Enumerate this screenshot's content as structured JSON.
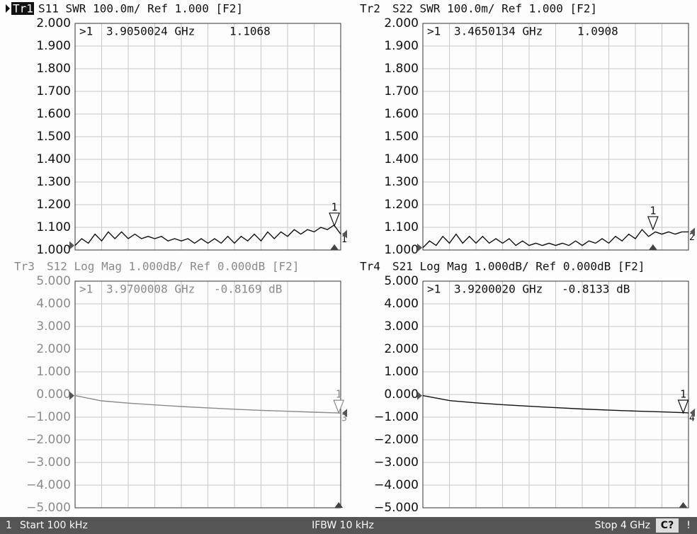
{
  "chart_data": [
    {
      "type": "line",
      "trace": "Tr1",
      "title": "S11 SWR 100.0m/ Ref 1.000 [F2]",
      "active": true,
      "color": "#111111",
      "end_label": "1",
      "xlim": [
        0.0001,
        4
      ],
      "x": [
        0.0001,
        0.1,
        0.2,
        0.3,
        0.4,
        0.5,
        0.6,
        0.7,
        0.8,
        0.9,
        1.0,
        1.1,
        1.2,
        1.3,
        1.4,
        1.5,
        1.6,
        1.7,
        1.8,
        1.9,
        2.0,
        2.1,
        2.2,
        2.3,
        2.4,
        2.5,
        2.6,
        2.7,
        2.8,
        2.9,
        3.0,
        3.1,
        3.2,
        3.3,
        3.4,
        3.5,
        3.6,
        3.7,
        3.8,
        3.9,
        4.0
      ],
      "values": [
        1.02,
        1.05,
        1.03,
        1.07,
        1.04,
        1.08,
        1.05,
        1.08,
        1.05,
        1.07,
        1.05,
        1.06,
        1.05,
        1.06,
        1.04,
        1.05,
        1.04,
        1.05,
        1.03,
        1.05,
        1.03,
        1.05,
        1.03,
        1.06,
        1.03,
        1.06,
        1.04,
        1.07,
        1.04,
        1.08,
        1.05,
        1.08,
        1.06,
        1.09,
        1.07,
        1.09,
        1.08,
        1.1,
        1.09,
        1.11,
        1.07
      ],
      "ylim": [
        1,
        2
      ],
      "yticks": [
        {
          "value": 2,
          "label": "2.000"
        },
        {
          "value": 1.9,
          "label": "1.900"
        },
        {
          "value": 1.8,
          "label": "1.800"
        },
        {
          "value": 1.7,
          "label": "1.700"
        },
        {
          "value": 1.6,
          "label": "1.600"
        },
        {
          "value": 1.5,
          "label": "1.500"
        },
        {
          "value": 1.4,
          "label": "1.400"
        },
        {
          "value": 1.3,
          "label": "1.300"
        },
        {
          "value": 1.2,
          "label": "1.200"
        },
        {
          "value": 1.1,
          "label": "1.100"
        },
        {
          "value": 1,
          "label": "1.000"
        }
      ],
      "grid": true,
      "marker": {
        "name": ">1",
        "label": "1",
        "x": 3.9050024,
        "x_label": "3.9050024 GHz",
        "value": 1.1068,
        "value_label": "1.1068"
      }
    },
    {
      "type": "line",
      "trace": "Tr2",
      "title": "S22 SWR 100.0m/ Ref 1.000 [F2]",
      "active": false,
      "color": "#111111",
      "end_label": "2",
      "xlim": [
        0.0001,
        4
      ],
      "x": [
        0.0001,
        0.1,
        0.2,
        0.3,
        0.4,
        0.5,
        0.6,
        0.7,
        0.8,
        0.9,
        1.0,
        1.1,
        1.2,
        1.3,
        1.4,
        1.5,
        1.6,
        1.7,
        1.8,
        1.9,
        2.0,
        2.1,
        2.2,
        2.3,
        2.4,
        2.5,
        2.6,
        2.7,
        2.8,
        2.9,
        3.0,
        3.1,
        3.2,
        3.3,
        3.4,
        3.5,
        3.6,
        3.7,
        3.8,
        3.9,
        4.0
      ],
      "values": [
        1.01,
        1.04,
        1.02,
        1.06,
        1.03,
        1.07,
        1.03,
        1.06,
        1.03,
        1.06,
        1.03,
        1.05,
        1.03,
        1.05,
        1.02,
        1.04,
        1.02,
        1.03,
        1.02,
        1.03,
        1.02,
        1.03,
        1.02,
        1.04,
        1.02,
        1.04,
        1.03,
        1.05,
        1.03,
        1.06,
        1.04,
        1.07,
        1.05,
        1.09,
        1.06,
        1.08,
        1.07,
        1.08,
        1.07,
        1.08,
        1.08
      ],
      "ylim": [
        1,
        2
      ],
      "yticks": [
        {
          "value": 2,
          "label": "2.000"
        },
        {
          "value": 1.9,
          "label": "1.900"
        },
        {
          "value": 1.8,
          "label": "1.800"
        },
        {
          "value": 1.7,
          "label": "1.700"
        },
        {
          "value": 1.6,
          "label": "1.600"
        },
        {
          "value": 1.5,
          "label": "1.500"
        },
        {
          "value": 1.4,
          "label": "1.400"
        },
        {
          "value": 1.3,
          "label": "1.300"
        },
        {
          "value": 1.2,
          "label": "1.200"
        },
        {
          "value": 1.1,
          "label": "1.100"
        },
        {
          "value": 1,
          "label": "1.000"
        }
      ],
      "grid": true,
      "marker": {
        "name": ">1",
        "label": "1",
        "x": 3.4650134,
        "x_label": "3.4650134 GHz",
        "value": 1.0908,
        "value_label": "1.0908"
      }
    },
    {
      "type": "line",
      "trace": "Tr3",
      "title": "S12 Log Mag 1.000dB/ Ref 0.000dB [F2]",
      "active": false,
      "color": "#8a8a8a",
      "end_label": "3",
      "xlim": [
        0.0001,
        4
      ],
      "x": [
        0.0001,
        0.4,
        0.8,
        1.2,
        1.6,
        2.0,
        2.4,
        2.8,
        3.2,
        3.6,
        4.0
      ],
      "values": [
        -0.05,
        -0.28,
        -0.38,
        -0.46,
        -0.53,
        -0.59,
        -0.65,
        -0.7,
        -0.74,
        -0.78,
        -0.82
      ],
      "ylim": [
        -5,
        5
      ],
      "yticks": [
        {
          "value": 5,
          "label": "5.000"
        },
        {
          "value": 4,
          "label": "4.000"
        },
        {
          "value": 3,
          "label": "3.000"
        },
        {
          "value": 2,
          "label": "2.000"
        },
        {
          "value": 1,
          "label": "1.000"
        },
        {
          "value": 0,
          "label": "0.000"
        },
        {
          "value": -1,
          "label": "−1.000"
        },
        {
          "value": -2,
          "label": "−2.000"
        },
        {
          "value": -3,
          "label": "−3.000"
        },
        {
          "value": -4,
          "label": "−4.000"
        },
        {
          "value": -5,
          "label": "−5.000"
        }
      ],
      "grid": true,
      "marker": {
        "name": ">1",
        "label": "1",
        "x": 3.9700008,
        "x_label": "3.9700008 GHz",
        "value": -0.8169,
        "value_label": "-0.8169 dB"
      }
    },
    {
      "type": "line",
      "trace": "Tr4",
      "title": "S21 Log Mag 1.000dB/ Ref 0.000dB [F2]",
      "active": false,
      "color": "#111111",
      "end_label": "4",
      "xlim": [
        0.0001,
        4
      ],
      "x": [
        0.0001,
        0.4,
        0.8,
        1.2,
        1.6,
        2.0,
        2.4,
        2.8,
        3.2,
        3.6,
        4.0
      ],
      "values": [
        -0.05,
        -0.27,
        -0.37,
        -0.45,
        -0.52,
        -0.58,
        -0.64,
        -0.69,
        -0.73,
        -0.77,
        -0.81
      ],
      "ylim": [
        -5,
        5
      ],
      "yticks": [
        {
          "value": 5,
          "label": "5.000"
        },
        {
          "value": 4,
          "label": "4.000"
        },
        {
          "value": 3,
          "label": "3.000"
        },
        {
          "value": 2,
          "label": "2.000"
        },
        {
          "value": 1,
          "label": "1.000"
        },
        {
          "value": 0,
          "label": "0.000"
        },
        {
          "value": -1,
          "label": "−1.000"
        },
        {
          "value": -2,
          "label": "−2.000"
        },
        {
          "value": -3,
          "label": "−3.000"
        },
        {
          "value": -4,
          "label": "−4.000"
        },
        {
          "value": -5,
          "label": "−5.000"
        }
      ],
      "grid": true,
      "marker": {
        "name": ">1",
        "label": "1",
        "x": 3.920002,
        "x_label": "3.9200020 GHz",
        "value": -0.8133,
        "value_label": "-0.8133 dB"
      }
    }
  ],
  "status_bar": {
    "channel": "1",
    "start": "Start 100 kHz",
    "ifbw": "IFBW 10 kHz",
    "stop": "Stop 4 GHz",
    "cal": "C?",
    "alert": "!"
  }
}
